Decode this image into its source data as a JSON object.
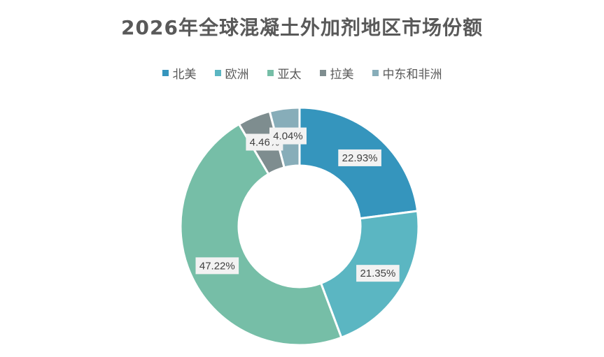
{
  "chart_data": {
    "type": "pie",
    "variant": "doughnut",
    "title": "2026年全球混凝土外加剂地区市场份额",
    "legend_position": "top",
    "categories": [
      "北美",
      "欧洲",
      "亚太",
      "拉美",
      "中东和非洲"
    ],
    "values": [
      22.93,
      21.35,
      47.22,
      4.46,
      4.04
    ],
    "value_labels": [
      "22.93%",
      "21.35%",
      "47.22%",
      "4.46%",
      "4.04%"
    ],
    "colors": [
      "#3595bd",
      "#5bb6c2",
      "#76bea7",
      "#7e8d8f",
      "#87adb9"
    ]
  }
}
